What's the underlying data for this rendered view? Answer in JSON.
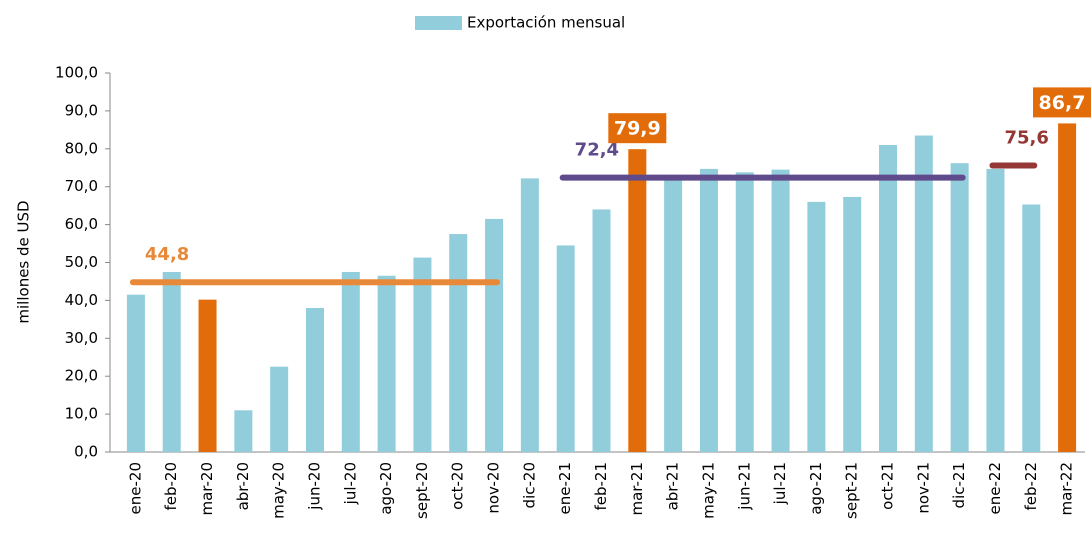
{
  "chart_data": {
    "type": "bar",
    "y_label": "millones de USD",
    "categories": [
      "ene-20",
      "feb-20",
      "mar-20",
      "abr-20",
      "may-20",
      "jun-20",
      "jul-20",
      "ago-20",
      "sept-20",
      "oct-20",
      "nov-20",
      "dic-20",
      "ene-21",
      "feb-21",
      "mar-21",
      "abr-21",
      "may-21",
      "jun-21",
      "jul-21",
      "ago-21",
      "sept-21",
      "oct-21",
      "nov-21",
      "dic-21",
      "ene-22",
      "feb-22",
      "mar-22"
    ],
    "series": [
      {
        "name": "Exportación mensual",
        "color": "#92cddc",
        "values": [
          41.5,
          47.5,
          40.2,
          11.0,
          22.5,
          38.0,
          47.5,
          46.5,
          51.3,
          57.5,
          61.5,
          72.2,
          54.5,
          64.0,
          79.9,
          72.0,
          74.7,
          73.8,
          74.5,
          66.0,
          67.3,
          81.0,
          83.5,
          76.2,
          74.7,
          65.3,
          86.7
        ],
        "colors": [
          "#92cddc",
          "#92cddc",
          "#e36c0a",
          "#92cddc",
          "#92cddc",
          "#92cddc",
          "#92cddc",
          "#92cddc",
          "#92cddc",
          "#92cddc",
          "#92cddc",
          "#92cddc",
          "#92cddc",
          "#92cddc",
          "#e36c0a",
          "#92cddc",
          "#92cddc",
          "#92cddc",
          "#92cddc",
          "#92cddc",
          "#92cddc",
          "#92cddc",
          "#92cddc",
          "#92cddc",
          "#92cddc",
          "#92cddc",
          "#e36c0a"
        ],
        "value_labels": [
          null,
          null,
          null,
          null,
          null,
          null,
          null,
          null,
          null,
          null,
          null,
          null,
          null,
          null,
          "79,9",
          null,
          null,
          null,
          null,
          null,
          null,
          null,
          null,
          null,
          null,
          null,
          "86,7"
        ]
      }
    ],
    "reference_lines": [
      {
        "value": 44.8,
        "label": "44,8",
        "color": "#e8893a",
        "from": "ene-20",
        "to": "nov-20"
      },
      {
        "value": 72.4,
        "label": "72,4",
        "color": "#5f4b8b",
        "from": "ene-21",
        "to": "dic-21"
      },
      {
        "value": 75.6,
        "label": "75,6",
        "color": "#953735",
        "from": "ene-22",
        "to": "feb-22"
      }
    ],
    "ylim": [
      0,
      100
    ],
    "yticks": [
      {
        "value": 0,
        "label": "0,0"
      },
      {
        "value": 10,
        "label": "10,0"
      },
      {
        "value": 20,
        "label": "20,0"
      },
      {
        "value": 30,
        "label": "30,0"
      },
      {
        "value": 40,
        "label": "40,0"
      },
      {
        "value": 50,
        "label": "50,0"
      },
      {
        "value": 60,
        "label": "60,0"
      },
      {
        "value": 70,
        "label": "70,0"
      },
      {
        "value": 80,
        "label": "80,0"
      },
      {
        "value": 90,
        "label": "90,0"
      },
      {
        "value": 100,
        "label": "100,0"
      }
    ],
    "legend": "top"
  }
}
